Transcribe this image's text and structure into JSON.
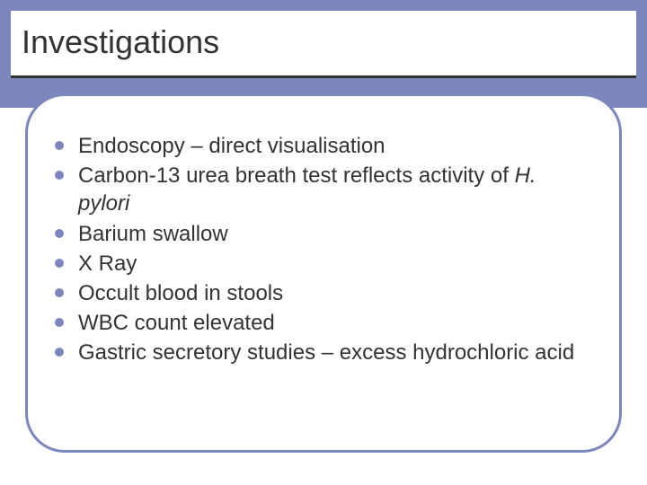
{
  "slide": {
    "title": "Investigations",
    "bullets": [
      {
        "runs": [
          {
            "text": "Endoscopy – direct visualisation"
          }
        ]
      },
      {
        "runs": [
          {
            "text": "Carbon-13 urea breath test reflects activity of "
          },
          {
            "text": "H. pylori",
            "italic": true
          }
        ]
      },
      {
        "runs": [
          {
            "text": "Barium swallow"
          }
        ]
      },
      {
        "runs": [
          {
            "text": "X Ray"
          }
        ]
      },
      {
        "runs": [
          {
            "text": "Occult blood in stools"
          }
        ]
      },
      {
        "runs": [
          {
            "text": "WBC count elevated"
          }
        ]
      },
      {
        "runs": [
          {
            "text": "Gastric secretory studies – excess hydrochloric acid"
          }
        ]
      }
    ]
  },
  "style": {
    "accent_color": "#7b86bd",
    "text_color": "#333333",
    "background_color": "#ffffff",
    "title_fontsize": 36,
    "body_fontsize": 24,
    "bullet_color": "#7b86bd",
    "content_border_radius": 44,
    "content_border_width": 3
  }
}
